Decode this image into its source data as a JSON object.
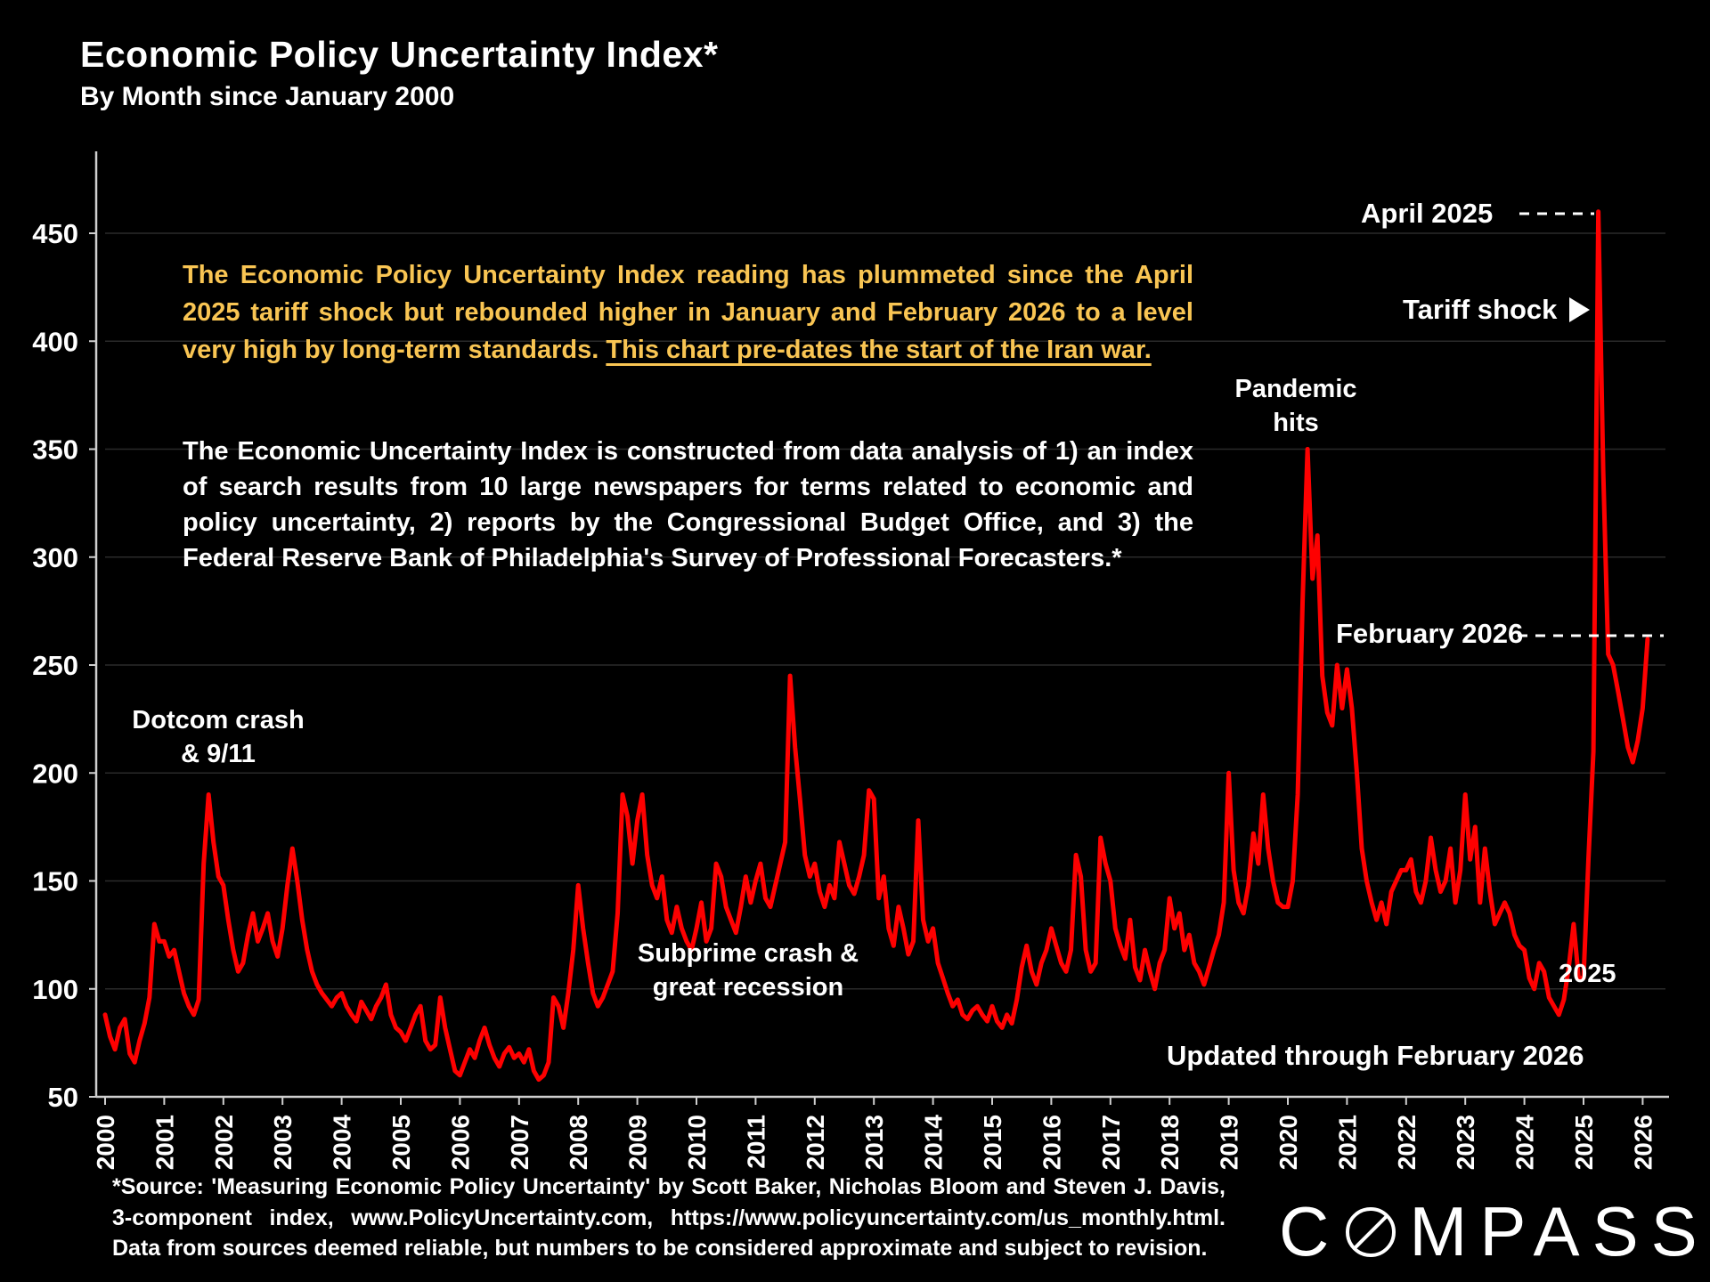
{
  "slide": {
    "title": "Economic Policy Uncertainty Index*",
    "subtitle": "By Month since January 2000",
    "source_note": "*Source: 'Measuring Economic Policy Uncertainty' by Scott Baker, Nicholas Bloom and Steven J. Davis, 3-component index, www.PolicyUncertainty.com, https://www.policyuncertainty.com/us_monthly.html. Data from sources deemed reliable, but numbers to be considered approximate and subject to revision.",
    "logo": {
      "text": "COMPASS",
      "part1": "C",
      "part2": "MPASS"
    }
  },
  "callouts": {
    "highlight": {
      "text": "The Economic Policy Uncertainty Index reading has plummeted since the April 2025 tariff shock but rebounded higher in January and February 2026 to a level very high by long-term standards. ",
      "underlined_text": "This chart pre-dates the start of the Iran war.",
      "color": "#F9C553"
    },
    "methodology": "The Economic Uncertainty Index is constructed from data analysis of 1) an index of search results from 10 large newspapers for terms related to economic and policy uncertainty, 2) reports by the Congressional Budget Office, and 3) the Federal Reserve Bank of Philadelphia's Survey of Professional Forecasters.*"
  },
  "chart_data": {
    "type": "line",
    "title": "Economic Policy Uncertainty Index by month",
    "x_start": "2000-01",
    "x_end": "2026-02",
    "frequency": "monthly",
    "x_tick_labels": [
      "2000",
      "2001",
      "2002",
      "2003",
      "2004",
      "2005",
      "2006",
      "2007",
      "2008",
      "2009",
      "2010",
      "2011",
      "2012",
      "2013",
      "2014",
      "2015",
      "2016",
      "2017",
      "2018",
      "2019",
      "2020",
      "2021",
      "2022",
      "2023",
      "2024",
      "2025",
      "2026"
    ],
    "y_ticks": [
      50,
      100,
      150,
      200,
      250,
      300,
      350,
      400,
      450
    ],
    "ylim": [
      50,
      470
    ],
    "grid": true,
    "line_color": "#FE0000",
    "background_color": "#000000",
    "series": [
      {
        "name": "Economic Policy Uncertainty Index",
        "start": "2000-01",
        "values": [
          88,
          78,
          72,
          82,
          86,
          70,
          66,
          76,
          84,
          96,
          130,
          122,
          122,
          115,
          118,
          108,
          98,
          92,
          88,
          95,
          158,
          190,
          168,
          152,
          148,
          132,
          118,
          108,
          112,
          125,
          135,
          122,
          128,
          135,
          122,
          115,
          128,
          148,
          165,
          150,
          132,
          118,
          108,
          102,
          98,
          95,
          92,
          96,
          98,
          92,
          88,
          85,
          94,
          90,
          86,
          92,
          96,
          102,
          88,
          82,
          80,
          76,
          82,
          88,
          92,
          76,
          72,
          74,
          96,
          82,
          72,
          62,
          60,
          66,
          72,
          68,
          76,
          82,
          74,
          68,
          64,
          70,
          73,
          68,
          70,
          66,
          72,
          62,
          58,
          60,
          66,
          96,
          92,
          82,
          98,
          118,
          148,
          128,
          112,
          98,
          92,
          96,
          102,
          108,
          135,
          190,
          180,
          158,
          178,
          190,
          162,
          148,
          142,
          152,
          132,
          126,
          138,
          128,
          122,
          118,
          128,
          140,
          122,
          128,
          158,
          152,
          138,
          132,
          126,
          138,
          152,
          140,
          150,
          158,
          142,
          138,
          148,
          158,
          168,
          245,
          212,
          188,
          162,
          152,
          158,
          145,
          138,
          148,
          142,
          168,
          158,
          148,
          144,
          152,
          162,
          192,
          188,
          142,
          152,
          128,
          120,
          138,
          128,
          116,
          122,
          178,
          132,
          122,
          128,
          112,
          105,
          98,
          92,
          95,
          88,
          86,
          90,
          92,
          88,
          85,
          92,
          85,
          82,
          88,
          84,
          95,
          110,
          120,
          108,
          102,
          112,
          118,
          128,
          120,
          112,
          108,
          118,
          162,
          152,
          118,
          108,
          112,
          170,
          158,
          150,
          128,
          120,
          114,
          132,
          110,
          104,
          118,
          108,
          100,
          112,
          118,
          142,
          128,
          135,
          118,
          125,
          112,
          108,
          102,
          110,
          118,
          125,
          140,
          200,
          155,
          140,
          135,
          148,
          172,
          158,
          190,
          165,
          150,
          140,
          138,
          138,
          150,
          190,
          280,
          350,
          290,
          310,
          245,
          228,
          222,
          250,
          230,
          248,
          230,
          200,
          165,
          150,
          140,
          132,
          140,
          130,
          145,
          150,
          155,
          155,
          160,
          145,
          140,
          150,
          170,
          155,
          145,
          150,
          165,
          140,
          155,
          190,
          160,
          175,
          140,
          165,
          145,
          130,
          135,
          140,
          135,
          125,
          120,
          118,
          105,
          100,
          112,
          108,
          96,
          92,
          88,
          95,
          110,
          130,
          105,
          105,
          160,
          210,
          460,
          340,
          255,
          250,
          238,
          225,
          212,
          205,
          215,
          230,
          262
        ]
      }
    ],
    "annotations": {
      "dotcom": {
        "line1": "Dotcom crash",
        "line2": "& 9/11",
        "x": "2001-10",
        "y": 190
      },
      "subprime": {
        "line1": "Subprime crash &",
        "line2": "great recession",
        "x": "2008-10",
        "y": 190
      },
      "pandemic": {
        "line1": "Pandemic",
        "line2": "hits",
        "x": "2020-05",
        "y": 350
      },
      "april_2025": {
        "label": "April 2025",
        "x": "2025-04",
        "y": 460
      },
      "tariff_shock": {
        "label": "Tariff shock",
        "x": "2025-04"
      },
      "february_2026": {
        "label": "February 2026",
        "x": "2026-02",
        "y": 262
      },
      "year_2025": {
        "label": "2025",
        "x": "2025-01",
        "y": 105
      },
      "updated": {
        "label": "Updated through February 2026"
      }
    }
  }
}
